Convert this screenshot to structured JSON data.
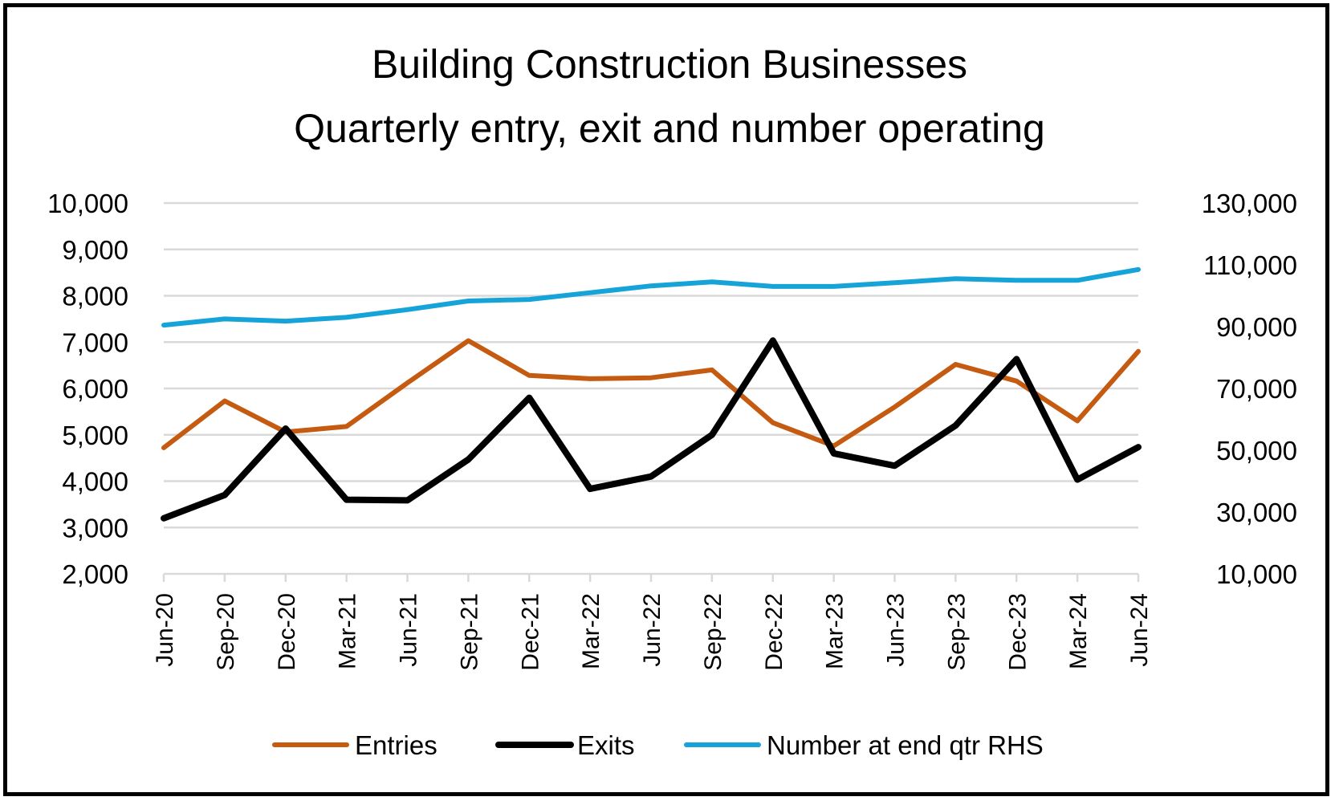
{
  "chart_data": {
    "type": "line",
    "title": "Building Construction Businesses",
    "subtitle": "Quarterly entry, exit and number operating",
    "categories": [
      "Jun-20",
      "Sep-20",
      "Dec-20",
      "Mar-21",
      "Jun-21",
      "Sep-21",
      "Dec-21",
      "Mar-22",
      "Jun-22",
      "Sep-22",
      "Dec-22",
      "Mar-23",
      "Jun-23",
      "Sep-23",
      "Dec-23",
      "Mar-24",
      "Jun-24"
    ],
    "y_left": {
      "min": 2000,
      "max": 10000,
      "step": 1000,
      "tick_labels": [
        "2,000",
        "3,000",
        "4,000",
        "5,000",
        "6,000",
        "7,000",
        "8,000",
        "9,000",
        "10,000"
      ]
    },
    "y_right": {
      "min": 10000,
      "max": 130000,
      "step": 20000,
      "tick_labels": [
        "10,000",
        "30,000",
        "50,000",
        "70,000",
        "90,000",
        "110,000",
        "130,000"
      ]
    },
    "grid": true,
    "legend_position": "bottom",
    "series": [
      {
        "name": "Entries",
        "axis": "left",
        "color": "#c55a11",
        "values": [
          4720,
          5730,
          5060,
          5180,
          6120,
          7030,
          6280,
          6210,
          6230,
          6400,
          5260,
          4760,
          5600,
          6520,
          6160,
          5300,
          6800
        ]
      },
      {
        "name": "Exits",
        "axis": "right",
        "color": "#000000",
        "values": [
          28000,
          35500,
          57000,
          34000,
          33800,
          47000,
          67000,
          37500,
          41500,
          55000,
          85500,
          49000,
          45000,
          58000,
          79500,
          40500,
          51000
        ]
      },
      {
        "name": "Number at end qtr RHS",
        "axis": "right",
        "color": "#16a4d8",
        "values": [
          90500,
          92500,
          91800,
          93000,
          95500,
          98300,
          98800,
          101000,
          103200,
          104500,
          103000,
          103000,
          104200,
          105500,
          105000,
          105000,
          108500
        ]
      }
    ]
  }
}
